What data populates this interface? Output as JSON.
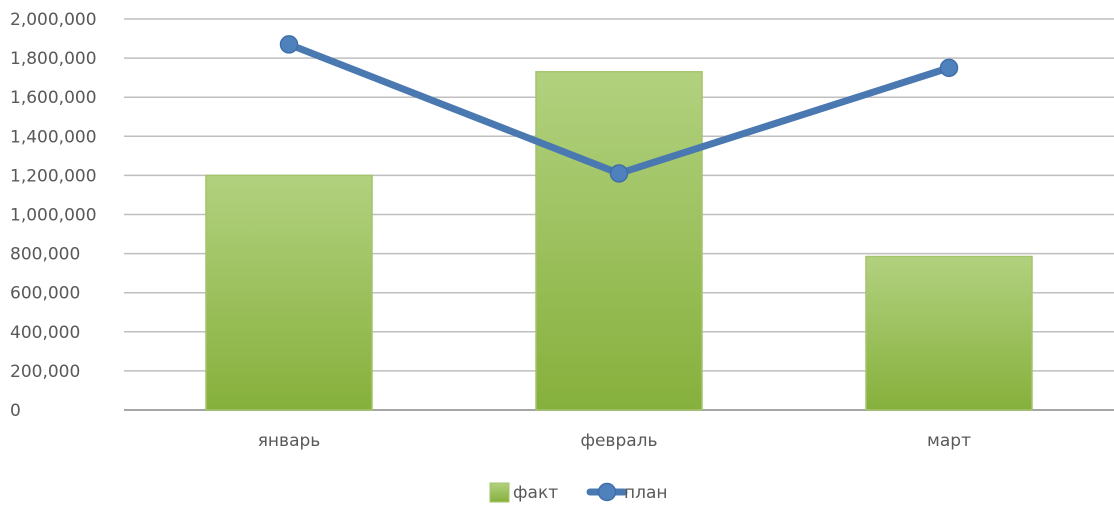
{
  "chart_data": {
    "type": "bar",
    "categories": [
      "январь",
      "февраль",
      "март"
    ],
    "series": [
      {
        "name": "факт",
        "type": "bar",
        "values": [
          1200000,
          1730000,
          785000
        ]
      },
      {
        "name": "план",
        "type": "line",
        "values": [
          1870000,
          1210000,
          1750000
        ]
      }
    ],
    "ylim": [
      0,
      2000000
    ],
    "yticks": [
      "0",
      "200,000",
      "400,000",
      "600,000",
      "800,000",
      "1,000,000",
      "1,200,000",
      "1,400,000",
      "1,600,000",
      "1,800,000",
      "2,000,000"
    ],
    "title": "",
    "xlabel": "",
    "ylabel": "",
    "grid": true,
    "legend_position": "bottom",
    "colors": {
      "bar_top": "#b2d17f",
      "bar_bottom": "#86b03c",
      "bar_border": "#a3c46b",
      "line": "#4a78b0",
      "marker": "#4f81bd",
      "grid": "#bfbfbf",
      "axis": "#a6a6a6",
      "text": "#595959"
    }
  }
}
